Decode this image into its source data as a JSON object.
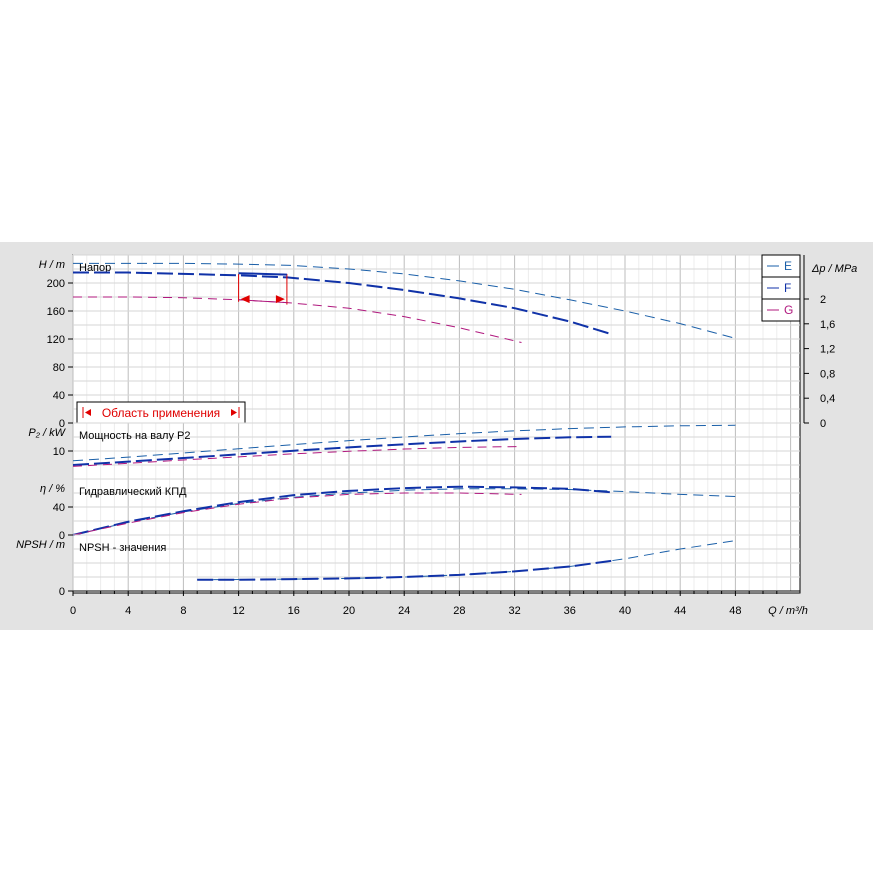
{
  "chart_data": {
    "type": "line",
    "x_axis": {
      "label": "Q / m³/h",
      "ticks": [
        0,
        4,
        8,
        12,
        16,
        20,
        24,
        28,
        32,
        36,
        40,
        44,
        48
      ],
      "range": [
        0,
        52
      ],
      "minor_step": 1
    },
    "legend": {
      "position": "top-right",
      "entries": [
        "E",
        "F",
        "G"
      ]
    },
    "grid": true,
    "colors": {
      "E": "#1a5fa8",
      "F": "#1032a8",
      "G": "#b0187e",
      "work_range": "#e00000"
    },
    "panels": [
      {
        "id": "head",
        "label": "Напор",
        "ylabel": "H / m",
        "ylim": [
          0,
          240
        ],
        "yticks": [
          0,
          40,
          80,
          120,
          160,
          200
        ],
        "right_axis": {
          "label": "Δp / MPa",
          "ticks": [
            "0",
            "0,4",
            "0,8",
            "1,2",
            "1,6",
            "2"
          ]
        },
        "work_range_label": "Область применения",
        "work_range_x": [
          12,
          15.5
        ],
        "series": [
          {
            "name": "E",
            "x": [
              0,
              4,
              8,
              12,
              16,
              20,
              24,
              28,
              32,
              36,
              40,
              44,
              48
            ],
            "y": [
              228,
              228,
              228,
              227,
              225,
              220,
              213,
              203,
              191,
              176,
              160,
              142,
              121
            ]
          },
          {
            "name": "F",
            "x": [
              0,
              4,
              8,
              12,
              15.5,
              20,
              24,
              28,
              32,
              36,
              39
            ],
            "y": [
              215,
              215,
              213,
              211,
              208,
              200,
              190,
              178,
              164,
              145,
              127
            ]
          },
          {
            "name": "G",
            "x": [
              0,
              4,
              8,
              12,
              15.5,
              20,
              24,
              28,
              32.5
            ],
            "y": [
              180,
              180,
              179,
              176,
              172,
              164,
              152,
              136,
              115
            ]
          }
        ]
      },
      {
        "id": "power",
        "label": "Мощность на валу P2",
        "ylabel": "P₂ / kW",
        "ylim": [
          0,
          20
        ],
        "yticks": [
          10
        ],
        "series": [
          {
            "name": "E",
            "x": [
              0,
              4,
              8,
              12,
              16,
              20,
              24,
              28,
              32,
              36,
              40,
              44,
              48
            ],
            "y": [
              6.5,
              7.8,
              9.3,
              10.8,
              12.3,
              13.7,
              15,
              16.2,
              17.2,
              18,
              18.6,
              19,
              19.2
            ]
          },
          {
            "name": "F",
            "x": [
              0,
              4,
              8,
              12,
              16,
              20,
              24,
              28,
              32,
              36,
              39
            ],
            "y": [
              5,
              6.2,
              7.5,
              8.8,
              10.1,
              11.3,
              12.4,
              13.4,
              14.3,
              14.9,
              15.1
            ]
          },
          {
            "name": "G",
            "x": [
              0,
              4,
              8,
              12,
              16,
              20,
              24,
              28,
              32.5
            ],
            "y": [
              4.5,
              5.6,
              6.8,
              7.9,
              9,
              9.9,
              10.7,
              11.3,
              11.6
            ]
          }
        ]
      },
      {
        "id": "efficiency",
        "label": "Гидравлический КПД",
        "ylabel": "η / %",
        "ylim": [
          0,
          80
        ],
        "yticks": [
          0,
          40
        ],
        "series": [
          {
            "name": "E",
            "x": [
              0,
              4,
              8,
              12,
              16,
              20,
              24,
              28,
              32,
              36,
              40,
              44,
              48
            ],
            "y": [
              0,
              18,
              33,
              45,
              54,
              60,
              64,
              66,
              66,
              65,
              62,
              58,
              55
            ]
          },
          {
            "name": "F",
            "x": [
              0,
              4,
              8,
              12,
              16,
              20,
              24,
              28,
              32,
              36,
              39
            ],
            "y": [
              0,
              19,
              34,
              47,
              57,
              63,
              67,
              69,
              68,
              66,
              61
            ]
          },
          {
            "name": "G",
            "x": [
              0,
              4,
              8,
              12,
              16,
              20,
              24,
              28,
              32.5
            ],
            "y": [
              0,
              17,
              32,
              44,
              53,
              58,
              60,
              60,
              58
            ]
          }
        ]
      },
      {
        "id": "npsh",
        "label": "NPSH - значения",
        "ylabel": "NPSH / m",
        "ylim": [
          0,
          8
        ],
        "yticks": [
          0
        ],
        "series": [
          {
            "name": "E",
            "x": [
              9,
              16,
              20,
              24,
              28,
              32,
              36,
              40,
              44,
              48
            ],
            "y": [
              1.6,
              1.7,
              1.8,
              2,
              2.3,
              2.8,
              3.5,
              4.6,
              6,
              7.2
            ]
          },
          {
            "name": "F",
            "x": [
              9,
              12,
              16,
              20,
              24,
              28,
              32,
              36,
              39
            ],
            "y": [
              1.6,
              1.6,
              1.7,
              1.8,
              2,
              2.3,
              2.8,
              3.5,
              4.3
            ]
          }
        ]
      }
    ]
  }
}
